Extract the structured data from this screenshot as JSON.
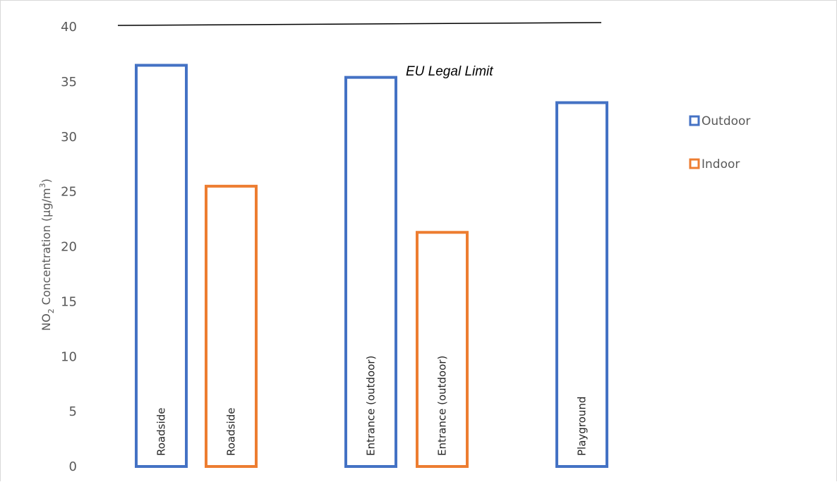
{
  "chart_data": {
    "type": "bar",
    "title": "",
    "xlabel": "",
    "ylabel_parts": {
      "base": "NO",
      "sub": "2",
      "mid": " Concentration (µg/m",
      "sup": "3",
      "end": ")"
    },
    "ylim": [
      0,
      40
    ],
    "yticks": [
      0,
      5,
      10,
      15,
      20,
      25,
      30,
      35,
      40
    ],
    "grid": false,
    "legend_position": "right",
    "series": [
      {
        "name": "Outdoor",
        "color": "#4472c4"
      },
      {
        "name": "Indoor",
        "color": "#ed7d31"
      }
    ],
    "bars": [
      {
        "label": "Roadside",
        "series": "Outdoor",
        "value": 36.5
      },
      {
        "label": "Roadside",
        "series": "Indoor",
        "value": 25.5
      },
      {
        "label": "Entrance (outdoor)",
        "series": "Outdoor",
        "value": 35.4
      },
      {
        "label": "Entrance (outdoor)",
        "series": "Indoor",
        "value": 21.3
      },
      {
        "label": "Playground",
        "series": "Outdoor",
        "value": 33.1
      }
    ],
    "annotations": [
      {
        "label": "EU Legal Limit",
        "type": "reference-line",
        "value": 40,
        "color": "#000000"
      }
    ]
  }
}
